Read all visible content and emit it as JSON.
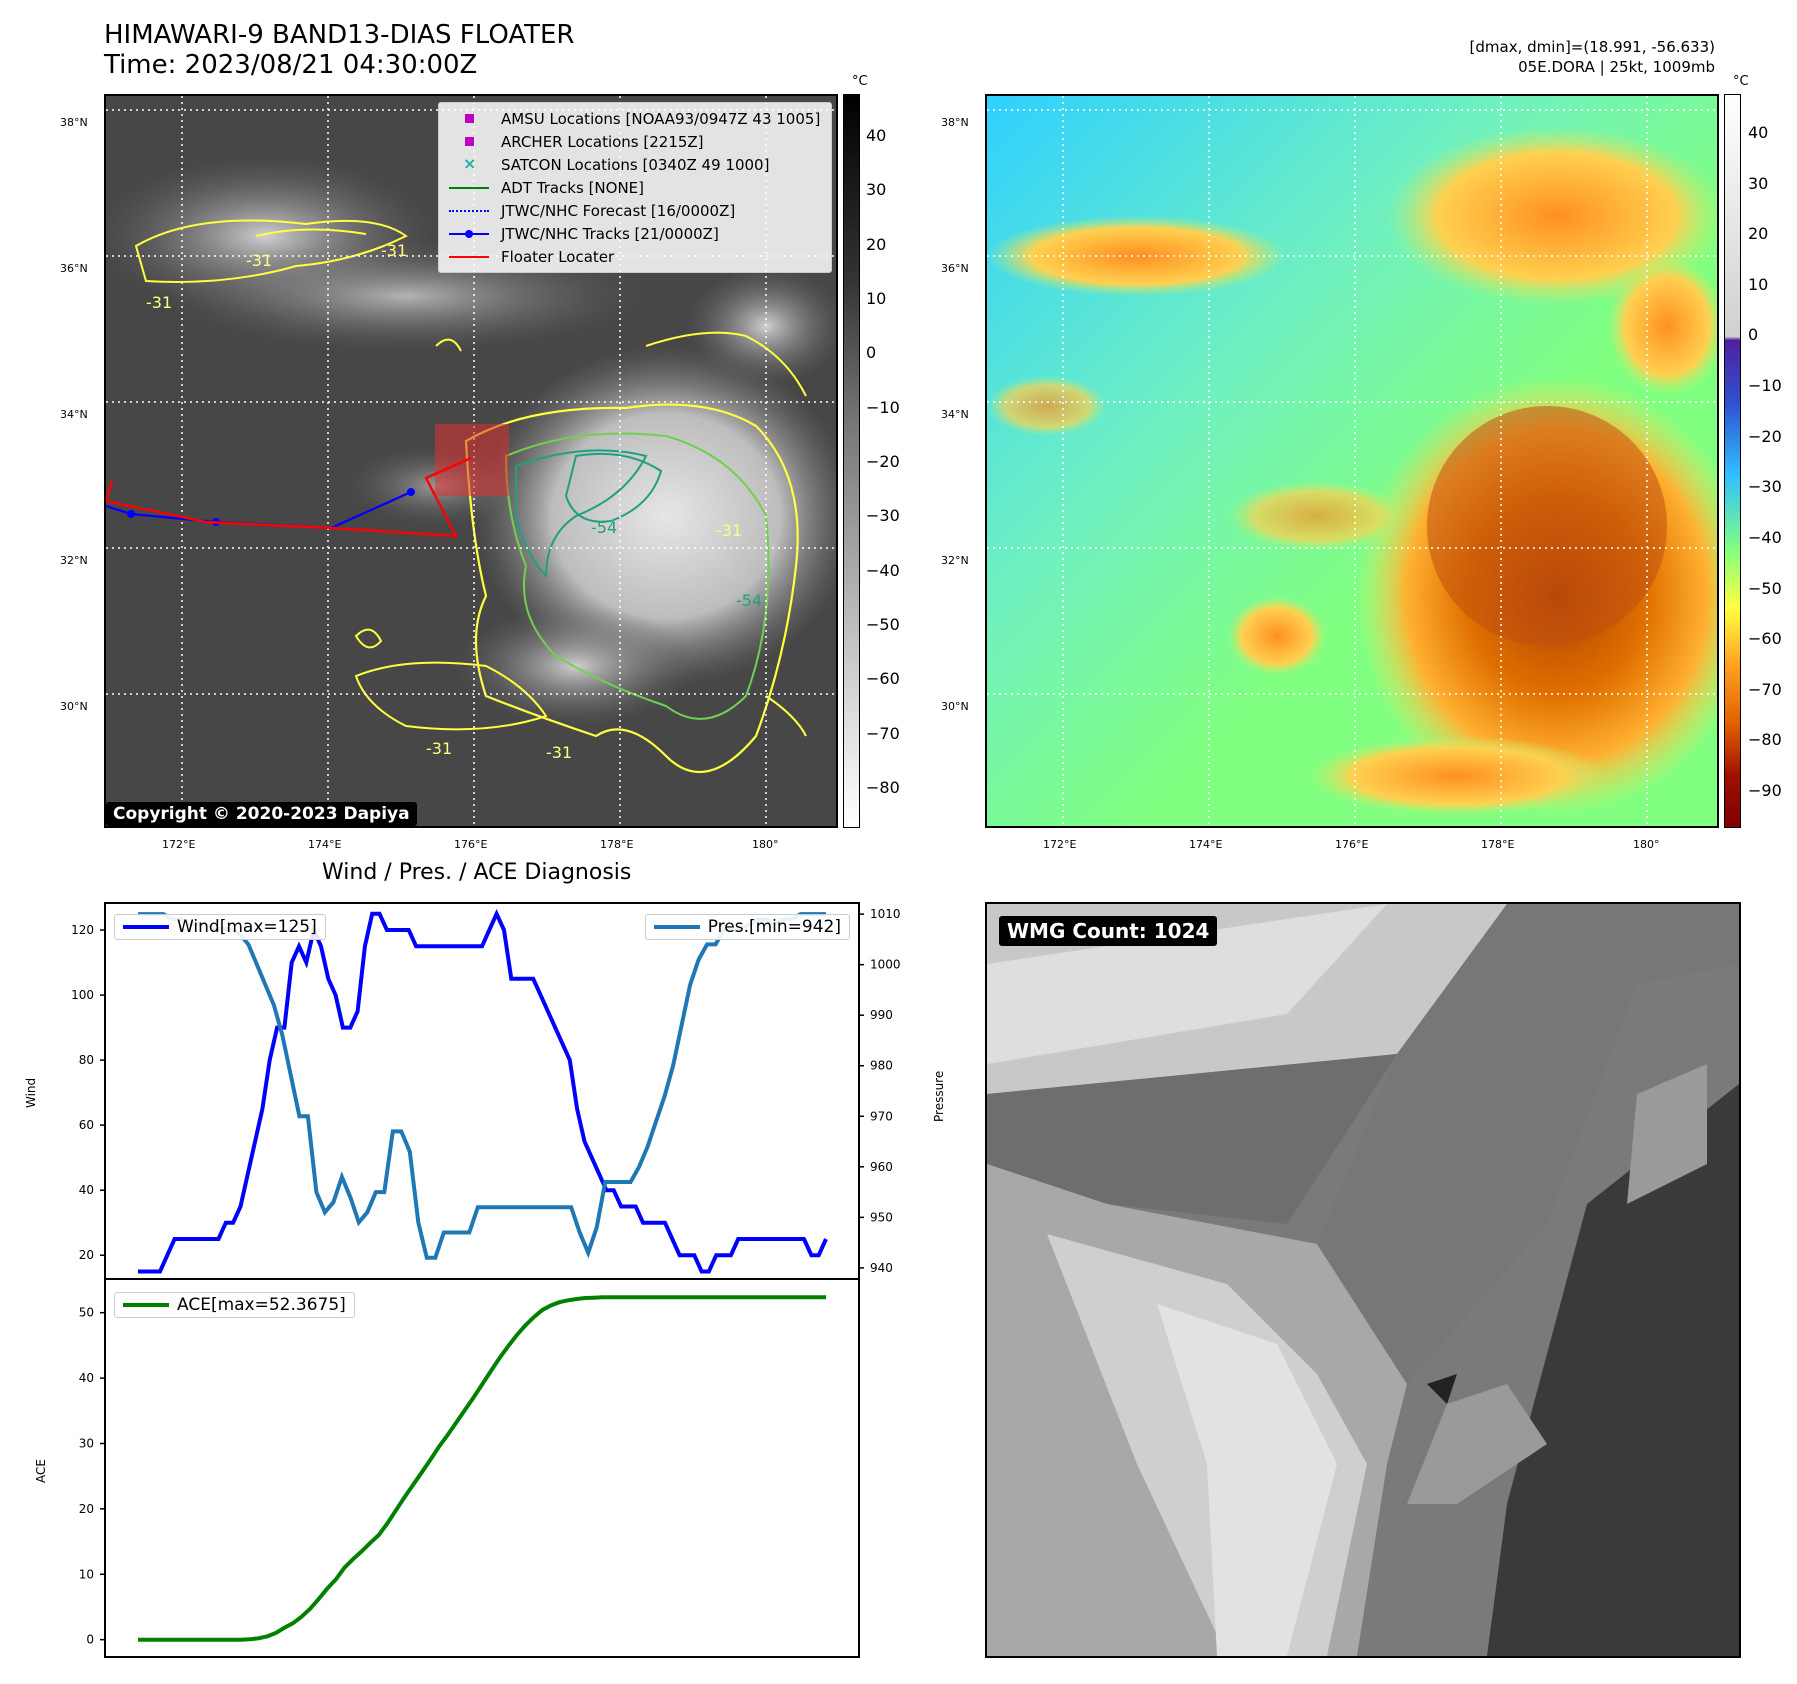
{
  "header": {
    "title": "HIMAWARI-9 BAND13-DIAS FLOATER",
    "time": "Time: 2023/08/21 04:30:00Z",
    "stats": "[dmax, dmin]=(18.991, -56.633)",
    "storm": "05E.DORA | 25kt, 1009mb"
  },
  "map": {
    "lat_labels": [
      "38°N",
      "36°N",
      "34°N",
      "32°N",
      "30°N"
    ],
    "lon_labels": [
      "172°E",
      "174°E",
      "176°E",
      "178°E",
      "180°"
    ],
    "copyright": "Copyright © 2020-2023 Dapiya",
    "contour_labels": [
      "-31",
      "-31",
      "-31",
      "-54",
      "-31",
      "-31",
      "-31",
      "-54"
    ]
  },
  "legend": {
    "items": [
      {
        "label": "AMSU Locations [NOAA93/0947Z 43 1005]",
        "color": "#c000c0",
        "symbol": "square"
      },
      {
        "label": "ARCHER Locations [2215Z]",
        "color": "#c000c0",
        "symbol": "square"
      },
      {
        "label": "SATCON Locations [0340Z 49 1000]",
        "color": "#20b2aa",
        "symbol": "x"
      },
      {
        "label": "ADT Tracks [NONE]",
        "color": "#008000",
        "symbol": "line"
      },
      {
        "label": "JTWC/NHC Forecast [16/0000Z]",
        "color": "#0000ff",
        "symbol": "dotted"
      },
      {
        "label": "JTWC/NHC Tracks [21/0000Z]",
        "color": "#0000ff",
        "symbol": "line-dot"
      },
      {
        "label": "Floater Locater",
        "color": "#ff0000",
        "symbol": "line"
      }
    ]
  },
  "colorbar_left": {
    "unit": "°C",
    "ticks": [
      "40",
      "30",
      "20",
      "10",
      "0",
      "−10",
      "−20",
      "−30",
      "−40",
      "−50",
      "−60",
      "−70",
      "−80"
    ]
  },
  "colorbar_right": {
    "unit": "°C",
    "ticks": [
      "40",
      "30",
      "20",
      "10",
      "0",
      "−10",
      "−20",
      "−30",
      "−40",
      "−50",
      "−60",
      "−70",
      "−80",
      "−90"
    ]
  },
  "diagnosis": {
    "title": "Wind / Pres. / ACE Diagnosis",
    "wind_label": "Wind",
    "pressure_label": "Pressure",
    "ace_label": "ACE",
    "wind_legend": "Wind[max=125]",
    "pres_legend": "Pres.[min=942]",
    "ace_legend": "ACE[max=52.3675]",
    "wind_ticks": [
      "20",
      "40",
      "60",
      "80",
      "100",
      "120"
    ],
    "pres_ticks": [
      "940",
      "950",
      "960",
      "970",
      "980",
      "990",
      "1000",
      "1010"
    ],
    "ace_ticks": [
      "0",
      "10",
      "20",
      "30",
      "40",
      "50"
    ],
    "wind_color": "#0000ff",
    "pres_color": "#1f77b4",
    "ace_color": "#008000"
  },
  "wmg": {
    "label": "WMG Count: 1024"
  },
  "chart_data": [
    {
      "type": "line",
      "title": "Wind / Pres. / ACE Diagnosis",
      "ylabel": "Wind",
      "ylim": [
        13,
        128
      ],
      "series": [
        {
          "name": "Wind[max=125]",
          "values": [
            15,
            15,
            15,
            15,
            20,
            25,
            25,
            25,
            25,
            25,
            25,
            25,
            30,
            30,
            35,
            45,
            55,
            65,
            80,
            90,
            90,
            110,
            115,
            110,
            120,
            115,
            105,
            100,
            90,
            90,
            95,
            115,
            125,
            125,
            120,
            120,
            120,
            120,
            115,
            115,
            115,
            115,
            115,
            115,
            115,
            115,
            115,
            115,
            120,
            125,
            120,
            105,
            105,
            105,
            105,
            100,
            95,
            90,
            85,
            80,
            65,
            55,
            50,
            45,
            40,
            40,
            35,
            35,
            35,
            30,
            30,
            30,
            30,
            25,
            20,
            20,
            20,
            15,
            15,
            20,
            20,
            20,
            25,
            25,
            25,
            25,
            25,
            25,
            25,
            25,
            25,
            25,
            20,
            20,
            25
          ]
        }
      ]
    },
    {
      "type": "line",
      "ylabel": "Pressure",
      "ylim": [
        938,
        1012
      ],
      "series": [
        {
          "name": "Pres.[min=942]",
          "values": [
            1010,
            1010,
            1010,
            1010,
            1009,
            1009,
            1008,
            1008,
            1008,
            1007,
            1007,
            1007,
            1006,
            1004,
            1000,
            996,
            992,
            986,
            978,
            970,
            970,
            955,
            951,
            953,
            958,
            954,
            949,
            951,
            955,
            955,
            967,
            967,
            963,
            949,
            942,
            942,
            947,
            947,
            947,
            947,
            952,
            952,
            952,
            952,
            952,
            952,
            952,
            952,
            952,
            952,
            952,
            952,
            947,
            943,
            948,
            957,
            957,
            957,
            957,
            960,
            964,
            969,
            974,
            980,
            988,
            996,
            1001,
            1004,
            1004,
            1007,
            1007,
            1007,
            1008,
            1009,
            1009,
            1008,
            1009,
            1009,
            1010,
            1010,
            1010,
            1010
          ]
        }
      ]
    },
    {
      "type": "line",
      "ylabel": "ACE",
      "ylim": [
        -2.5,
        55
      ],
      "series": [
        {
          "name": "ACE[max=52.3675]",
          "values": [
            0,
            0,
            0,
            0,
            0,
            0,
            0,
            0,
            0,
            0,
            0,
            0,
            0,
            0.05,
            0.2,
            0.5,
            1,
            1.8,
            2.5,
            3.5,
            4.7,
            6.2,
            7.8,
            9.2,
            11,
            12.3,
            13.5,
            14.8,
            16,
            17.8,
            19.8,
            21.8,
            23.7,
            25.6,
            27.5,
            29.5,
            31.3,
            33.2,
            35.1,
            37,
            39,
            41,
            43,
            44.8,
            46.5,
            48,
            49.3,
            50.4,
            51.1,
            51.6,
            51.9,
            52.1,
            52.25,
            52.3,
            52.35,
            52.37,
            52.37,
            52.37,
            52.37,
            52.37,
            52.37,
            52.37,
            52.37,
            52.37,
            52.37,
            52.37,
            52.37,
            52.37,
            52.37,
            52.37,
            52.37,
            52.37,
            52.37,
            52.37,
            52.37,
            52.37,
            52.37,
            52.37,
            52.37,
            52.37,
            52.37
          ]
        }
      ]
    }
  ]
}
